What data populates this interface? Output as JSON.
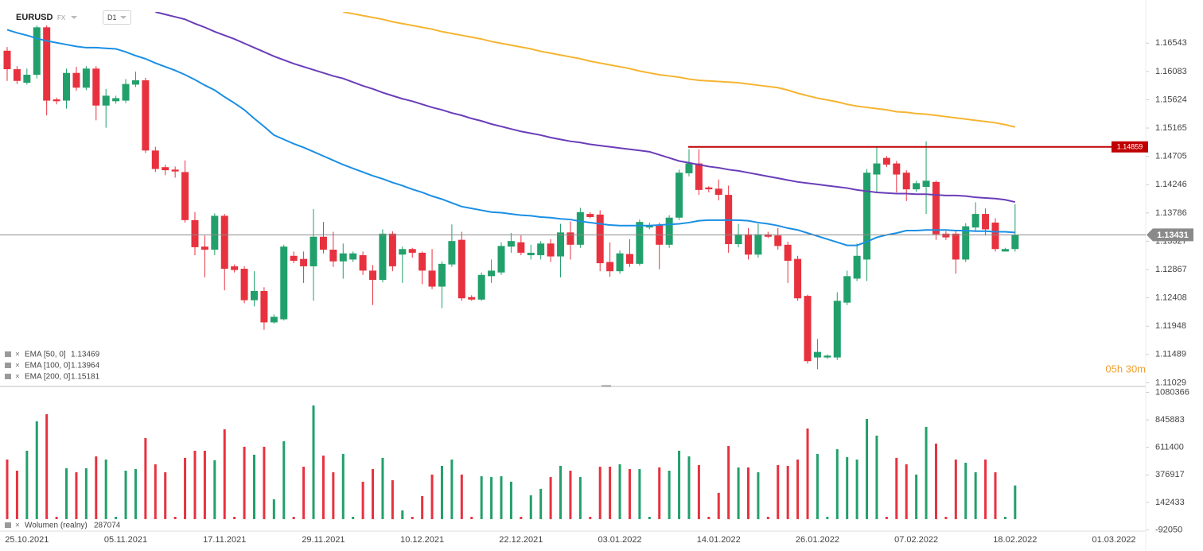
{
  "header": {
    "symbol": "EURUSD",
    "market": "FX",
    "timeframe": "D1"
  },
  "chart_data": [
    {
      "type": "candlestick",
      "categories": [
        null,
        null,
        "25.10.2021",
        null,
        null,
        null,
        null,
        null,
        null,
        null,
        null,
        null,
        "05.11.2021",
        null,
        null,
        null,
        null,
        null,
        null,
        null,
        null,
        null,
        "17.11.2021",
        null,
        null,
        null,
        null,
        null,
        null,
        null,
        null,
        null,
        "29.11.2021",
        null,
        null,
        null,
        null,
        null,
        null,
        null,
        null,
        null,
        "10.12.2021",
        null,
        null,
        null,
        null,
        null,
        null,
        null,
        null,
        null,
        "22.12.2021",
        null,
        null,
        null,
        null,
        null,
        null,
        null,
        null,
        null,
        "03.01.2022",
        null,
        null,
        null,
        null,
        null,
        null,
        null,
        null,
        null,
        "14.01.2022",
        null,
        null,
        null,
        null,
        null,
        null,
        null,
        null,
        null,
        "26.01.2022",
        null,
        null,
        null,
        null,
        null,
        null,
        null,
        null,
        null,
        "07.02.2022",
        null,
        null,
        null,
        null,
        null,
        null,
        null,
        null,
        null,
        "18.02.2022",
        null,
        null,
        null,
        null,
        null,
        null,
        null,
        null,
        null,
        "01.03.2022"
      ],
      "open": [
        1.1642,
        1.1612,
        1.159,
        1.1603,
        1.168,
        1.1563,
        1.1561,
        1.1606,
        1.1582,
        1.1613,
        1.1553,
        1.156,
        1.1561,
        1.1587,
        1.1594,
        1.148,
        1.1453,
        1.1449,
        1.1445,
        1.1367,
        1.1324,
        1.1319,
        1.1374,
        1.1292,
        1.1288,
        1.1237,
        1.1252,
        1.1201,
        1.1206,
        1.1309,
        1.1304,
        1.1292,
        1.134,
        1.1319,
        1.13,
        1.1303,
        1.131,
        1.1285,
        1.127,
        1.1345,
        1.1311,
        1.132,
        1.1314,
        1.1285,
        1.1259,
        1.1295,
        1.1335,
        1.1242,
        1.1238,
        1.1276,
        1.1282,
        1.1324,
        1.1331,
        1.131,
        1.131,
        1.1329,
        1.1308,
        1.1347,
        1.1327,
        1.1377,
        1.1376,
        1.1299,
        1.1284,
        1.1312,
        1.1296,
        1.1355,
        1.1359,
        1.1327,
        1.1371,
        1.1443,
        1.1459,
        1.142,
        1.1418,
        1.1408,
        1.1328,
        1.1344,
        1.1311,
        1.1344,
        1.1342,
        1.1327,
        1.1304,
        1.1244,
        1.1144,
        1.1144,
        1.1144,
        1.1233,
        1.1272,
        1.1303,
        1.1441,
        1.1468,
        1.1459,
        1.1444,
        1.1417,
        1.1421,
        1.1429,
        1.1345,
        1.1345,
        1.1303,
        1.1355,
        1.1377,
        1.1363,
        1.1316,
        1.132,
        null,
        null,
        null,
        null,
        null,
        null,
        null,
        null,
        null,
        null
      ],
      "high": [
        1.1648,
        1.1617,
        1.1613,
        1.1683,
        1.1683,
        1.1566,
        1.1613,
        1.1616,
        1.1617,
        1.1617,
        1.158,
        1.1569,
        1.1596,
        1.1608,
        1.1598,
        1.1486,
        1.1457,
        1.1454,
        1.1464,
        1.138,
        1.1342,
        1.1378,
        1.1377,
        1.1295,
        1.1292,
        1.1284,
        1.1258,
        1.1214,
        1.1327,
        1.1316,
        1.1316,
        1.1385,
        1.1364,
        1.1348,
        1.1329,
        1.1316,
        1.1316,
        1.1294,
        1.1352,
        1.1349,
        1.1324,
        1.1322,
        1.1316,
        1.132,
        1.13,
        1.136,
        1.1348,
        1.1245,
        1.1282,
        1.1303,
        1.1331,
        1.1346,
        1.1342,
        1.1327,
        1.1333,
        1.1336,
        1.1361,
        1.1365,
        1.1387,
        1.138,
        1.1383,
        1.1331,
        1.1318,
        1.1336,
        1.1368,
        1.1363,
        1.1363,
        1.1375,
        1.1449,
        1.1482,
        1.1482,
        1.1422,
        1.1433,
        1.1423,
        1.1361,
        1.1354,
        1.1361,
        1.1348,
        1.1354,
        1.1332,
        1.1309,
        1.1246,
        1.1174,
        1.1149,
        1.125,
        1.1285,
        1.1329,
        1.145,
        1.1485,
        1.1471,
        1.1463,
        1.1448,
        1.1431,
        1.1495,
        1.1431,
        1.1349,
        1.1349,
        1.1362,
        1.1396,
        1.1386,
        1.137,
        1.1322,
        1.1393,
        null,
        null,
        null,
        null,
        null,
        null,
        null,
        null,
        null,
        null
      ],
      "low": [
        1.1593,
        1.1588,
        1.1587,
        1.1597,
        1.1537,
        1.1555,
        1.1548,
        1.1577,
        1.1578,
        1.1529,
        1.1517,
        1.1556,
        1.1557,
        1.1583,
        1.1476,
        1.1445,
        1.144,
        1.1436,
        1.1363,
        1.131,
        1.1274,
        1.131,
        1.1253,
        1.1282,
        1.1232,
        1.1227,
        1.1189,
        1.1199,
        1.1204,
        1.1297,
        1.1265,
        1.1236,
        1.1313,
        1.1291,
        1.1272,
        1.1299,
        1.1278,
        1.1229,
        1.1266,
        1.1284,
        1.1265,
        1.1306,
        1.1263,
        1.1255,
        1.1224,
        1.1291,
        1.1236,
        1.1236,
        1.1236,
        1.1265,
        1.1278,
        1.1314,
        1.131,
        1.1303,
        1.1303,
        1.1299,
        1.1274,
        1.1303,
        1.1322,
        1.137,
        1.1284,
        1.1275,
        1.128,
        1.1291,
        1.1293,
        1.1352,
        1.1287,
        1.1322,
        1.1367,
        1.1438,
        1.1408,
        1.1412,
        1.1399,
        1.1314,
        1.1323,
        1.1303,
        1.1306,
        1.1338,
        1.1319,
        1.1265,
        1.1236,
        1.1134,
        1.1125,
        1.1142,
        1.114,
        1.1229,
        1.1268,
        1.1268,
        1.1412,
        1.1453,
        1.1412,
        1.1398,
        1.1413,
        1.1377,
        1.1335,
        1.1335,
        1.128,
        1.1299,
        1.1349,
        1.1342,
        1.1316,
        1.1316,
        1.1316,
        null,
        null,
        null,
        null,
        null,
        null,
        null,
        null,
        null,
        null
      ],
      "close": [
        1.1612,
        1.1593,
        1.1603,
        1.168,
        1.1561,
        1.156,
        1.1606,
        1.1582,
        1.1613,
        1.1553,
        1.1569,
        1.1565,
        1.1588,
        1.1594,
        1.148,
        1.145,
        1.1448,
        1.1446,
        1.1367,
        1.1323,
        1.1319,
        1.1374,
        1.1288,
        1.1286,
        1.1237,
        1.1252,
        1.1201,
        1.121,
        1.1324,
        1.1301,
        1.1292,
        1.134,
        1.1319,
        1.13,
        1.1313,
        1.1313,
        1.1285,
        1.127,
        1.1345,
        1.1292,
        1.132,
        1.1314,
        1.1285,
        1.1259,
        1.1296,
        1.1333,
        1.124,
        1.1238,
        1.1278,
        1.1285,
        1.1325,
        1.1333,
        1.1314,
        1.1314,
        1.1329,
        1.1308,
        1.1347,
        1.1327,
        1.138,
        1.1372,
        1.1297,
        1.1284,
        1.1313,
        1.1296,
        1.1364,
        1.1359,
        1.1327,
        1.1371,
        1.1444,
        1.1459,
        1.1416,
        1.1417,
        1.1408,
        1.1328,
        1.1344,
        1.1311,
        1.1344,
        1.134,
        1.1325,
        1.1301,
        1.124,
        1.1138,
        1.1153,
        1.1147,
        1.1236,
        1.1276,
        1.1309,
        1.1444,
        1.1459,
        1.1457,
        1.1441,
        1.1417,
        1.1427,
        1.1431,
        1.1344,
        1.1339,
        1.1303,
        1.1357,
        1.1377,
        1.1352,
        1.132,
        1.132,
        1.13431,
        null,
        null,
        null,
        null,
        null,
        null,
        null,
        null,
        null,
        null
      ],
      "up_color": "#22a06b",
      "down_color": "#e8313f",
      "series": [
        {
          "name": "EMA [50, 0]",
          "color": "#1a8fe3",
          "values": [
            1.1676,
            1.1671,
            1.1667,
            1.1662,
            1.1658,
            1.1655,
            1.1652,
            1.1649,
            1.1647,
            1.1647,
            1.1646,
            1.1645,
            1.164,
            1.1634,
            1.1629,
            1.1622,
            1.1616,
            1.161,
            1.1603,
            1.1595,
            1.1586,
            1.1578,
            1.1567,
            1.1557,
            1.1546,
            1.1532,
            1.1519,
            1.1505,
            1.1498,
            1.1491,
            1.1485,
            1.1478,
            1.1471,
            1.1464,
            1.1457,
            1.1451,
            1.1445,
            1.1439,
            1.1434,
            1.1428,
            1.1423,
            1.1417,
            1.1412,
            1.1406,
            1.1401,
            1.1395,
            1.1389,
            1.1386,
            1.1383,
            1.138,
            1.1379,
            1.1377,
            1.1375,
            1.1374,
            1.1372,
            1.1371,
            1.1369,
            1.1368,
            1.1365,
            1.1363,
            1.1361,
            1.1359,
            1.1358,
            1.1358,
            1.1358,
            1.1358,
            1.1359,
            1.136,
            1.1361,
            1.1363,
            1.1366,
            1.1367,
            1.1367,
            1.1367,
            1.1367,
            1.1366,
            1.1363,
            1.1361,
            1.1358,
            1.1354,
            1.1351,
            1.1346,
            1.1341,
            1.1336,
            1.1331,
            1.1326,
            1.1326,
            1.1332,
            1.1339,
            1.1343,
            1.1346,
            1.135,
            1.135,
            1.1351,
            1.1351,
            1.1351,
            1.135,
            1.135,
            1.1349,
            1.1349,
            1.1348,
            1.1348,
            1.13469,
            null,
            null,
            null,
            null,
            null,
            null,
            null,
            null,
            null,
            null
          ]
        },
        {
          "name": "EMA [100, 0]",
          "color": "#6a3db8",
          "values": [
            null,
            null,
            null,
            null,
            null,
            null,
            null,
            null,
            null,
            null,
            null,
            null,
            null,
            null,
            null,
            1.1705,
            1.1701,
            1.1697,
            1.1693,
            1.1686,
            1.168,
            1.1673,
            1.1667,
            1.1661,
            1.1654,
            1.1647,
            1.164,
            1.1633,
            1.1627,
            1.1621,
            1.1616,
            1.1611,
            1.1606,
            1.1601,
            1.1597,
            1.1591,
            1.1585,
            1.158,
            1.1574,
            1.1569,
            1.1564,
            1.156,
            1.1555,
            1.155,
            1.1546,
            1.1541,
            1.1537,
            1.1532,
            1.1528,
            1.1523,
            1.1519,
            1.1515,
            1.1511,
            1.1508,
            1.1505,
            1.1501,
            1.1498,
            1.1495,
            1.1493,
            1.149,
            1.1488,
            1.1486,
            1.1484,
            1.1482,
            1.148,
            1.1478,
            1.1473,
            1.1468,
            1.1463,
            1.146,
            1.1457,
            1.1454,
            1.1452,
            1.1449,
            1.1447,
            1.1444,
            1.1441,
            1.1438,
            1.1435,
            1.1432,
            1.1429,
            1.1427,
            1.1425,
            1.1423,
            1.1421,
            1.1419,
            1.1416,
            1.1414,
            1.1412,
            1.1411,
            1.141,
            1.141,
            1.1409,
            1.1409,
            1.1408,
            1.1407,
            1.1407,
            1.1406,
            1.1404,
            1.1403,
            1.1402,
            1.14,
            1.13964,
            null,
            null,
            null,
            null,
            null,
            null,
            null,
            null,
            null,
            null
          ]
        },
        {
          "name": "EMA [200, 0]",
          "color": "#f5b531",
          "values": [
            null,
            null,
            null,
            null,
            null,
            null,
            null,
            null,
            null,
            null,
            null,
            null,
            null,
            null,
            null,
            null,
            null,
            null,
            null,
            null,
            null,
            null,
            null,
            null,
            null,
            null,
            null,
            null,
            null,
            null,
            null,
            null,
            null,
            null,
            1.1705,
            1.1702,
            1.1699,
            1.1696,
            1.1693,
            1.1689,
            1.1686,
            1.1683,
            1.168,
            1.1677,
            1.1673,
            1.167,
            1.1667,
            1.1664,
            1.1661,
            1.1657,
            1.1654,
            1.1651,
            1.1648,
            1.1645,
            1.1641,
            1.1638,
            1.1635,
            1.1632,
            1.1629,
            1.1625,
            1.1622,
            1.1619,
            1.1616,
            1.1613,
            1.1609,
            1.1606,
            1.1603,
            1.1601,
            1.1599,
            1.1596,
            1.1594,
            1.1593,
            1.1592,
            1.1591,
            1.159,
            1.1588,
            1.1586,
            1.1584,
            1.1582,
            1.1578,
            1.1573,
            1.1569,
            1.1565,
            1.1562,
            1.1559,
            1.1555,
            1.1552,
            1.155,
            1.1548,
            1.1546,
            1.1543,
            1.1542,
            1.154,
            1.1539,
            1.1537,
            1.1535,
            1.1533,
            1.1531,
            1.1529,
            1.1527,
            1.1525,
            1.1522,
            1.15181,
            null,
            null,
            null,
            null,
            null,
            null,
            null,
            null,
            null,
            null
          ]
        }
      ],
      "lines": [
        {
          "value": 1.14859,
          "color": "#c00000"
        }
      ],
      "last_price_color": "#8a8a8a",
      "ylim": [
        1.1097,
        1.1705
      ],
      "yticks": [
        1.16543,
        1.16083,
        1.15624,
        1.15165,
        1.14705,
        1.14246,
        1.13786,
        1.13327,
        1.12867,
        1.12408,
        1.11948,
        1.11489,
        1.11029
      ],
      "grid": false,
      "countdown": "05h 30m"
    },
    {
      "type": "bar",
      "title": "Wolumen (realny)",
      "values": [
        508000,
        413000,
        583000,
        834000,
        895000,
        20000,
        434000,
        400000,
        434000,
        535000,
        508000,
        20000,
        413000,
        427000,
        691000,
        468000,
        400000,
        20000,
        522000,
        583000,
        583000,
        502000,
        766000,
        20000,
        617000,
        549000,
        617000,
        169000,
        664000,
        20000,
        447000,
        969000,
        542000,
        400000,
        556000,
        20000,
        319000,
        427000,
        522000,
        332000,
        75000,
        20000,
        197000,
        380000,
        454000,
        508000,
        380000,
        20000,
        366000,
        359000,
        366000,
        319000,
        20000,
        203000,
        258000,
        359000,
        454000,
        413000,
        359000,
        20000,
        447000,
        447000,
        468000,
        427000,
        427000,
        20000,
        441000,
        413000,
        583000,
        535000,
        461000,
        20000,
        224000,
        623000,
        441000,
        441000,
        400000,
        20000,
        461000,
        454000,
        508000,
        773000,
        556000,
        20000,
        596000,
        529000,
        508000,
        854000,
        712000,
        20000,
        522000,
        468000,
        380000,
        786000,
        644000,
        20000,
        508000,
        481000,
        400000,
        508000,
        400000,
        20000,
        287074
      ],
      "ylim": [
        -102000,
        1104000
      ],
      "yticks": [
        1080366,
        845883,
        611400,
        376917,
        142433,
        -92050
      ],
      "grid": false
    }
  ]
}
